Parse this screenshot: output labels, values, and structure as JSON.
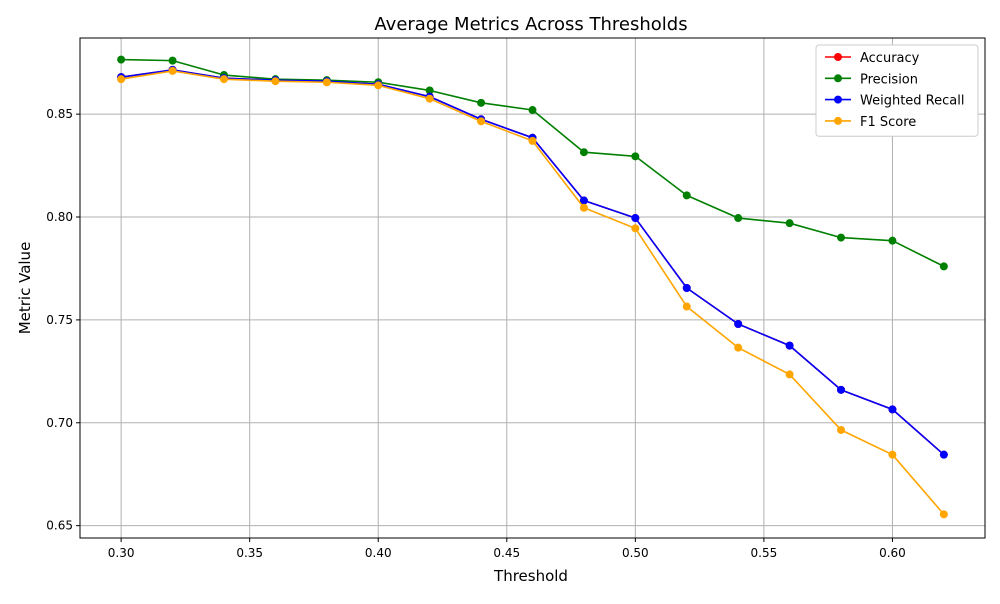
{
  "chart_data": {
    "type": "line",
    "title": "Average Metrics Across Thresholds",
    "xlabel": "Threshold",
    "ylabel": "Metric Value",
    "xlim": [
      0.284,
      0.636
    ],
    "ylim": [
      0.644,
      0.887
    ],
    "grid": true,
    "legend_position": "top-right",
    "x_ticks": [
      "0.30",
      "0.35",
      "0.40",
      "0.45",
      "0.50",
      "0.55",
      "0.60"
    ],
    "y_ticks": [
      "0.65",
      "0.70",
      "0.75",
      "0.80",
      "0.85"
    ],
    "x": [
      0.3,
      0.32,
      0.34,
      0.36,
      0.38,
      0.4,
      0.42,
      0.44,
      0.46,
      0.48,
      0.5,
      0.52,
      0.54,
      0.56,
      0.58,
      0.6,
      0.62
    ],
    "series": [
      {
        "name": "Accuracy",
        "color": "#ff0000",
        "values": [
          0.868,
          0.8715,
          0.8675,
          0.8665,
          0.866,
          0.8645,
          0.8585,
          0.8475,
          0.8385,
          0.808,
          0.7995,
          0.7655,
          0.748,
          0.7375,
          0.716,
          0.7065,
          0.6845
        ]
      },
      {
        "name": "Precision",
        "color": "#008000",
        "values": [
          0.8765,
          0.876,
          0.869,
          0.867,
          0.8665,
          0.8655,
          0.8615,
          0.8555,
          0.852,
          0.8315,
          0.8295,
          0.8105,
          0.7995,
          0.797,
          0.79,
          0.7885,
          0.776
        ]
      },
      {
        "name": "Weighted Recall",
        "color": "#0000ff",
        "values": [
          0.868,
          0.8715,
          0.8675,
          0.8665,
          0.866,
          0.8645,
          0.8585,
          0.8475,
          0.8385,
          0.808,
          0.7995,
          0.7655,
          0.748,
          0.7375,
          0.716,
          0.7065,
          0.6845
        ]
      },
      {
        "name": "F1 Score",
        "color": "#ffa500",
        "values": [
          0.867,
          0.871,
          0.867,
          0.866,
          0.8655,
          0.864,
          0.8575,
          0.8465,
          0.837,
          0.8045,
          0.7945,
          0.7565,
          0.7365,
          0.7235,
          0.6965,
          0.6845,
          0.6555
        ]
      }
    ]
  },
  "colors": {
    "grid": "#b0b0b0",
    "axis": "#000000",
    "legend_border": "#cccccc"
  }
}
